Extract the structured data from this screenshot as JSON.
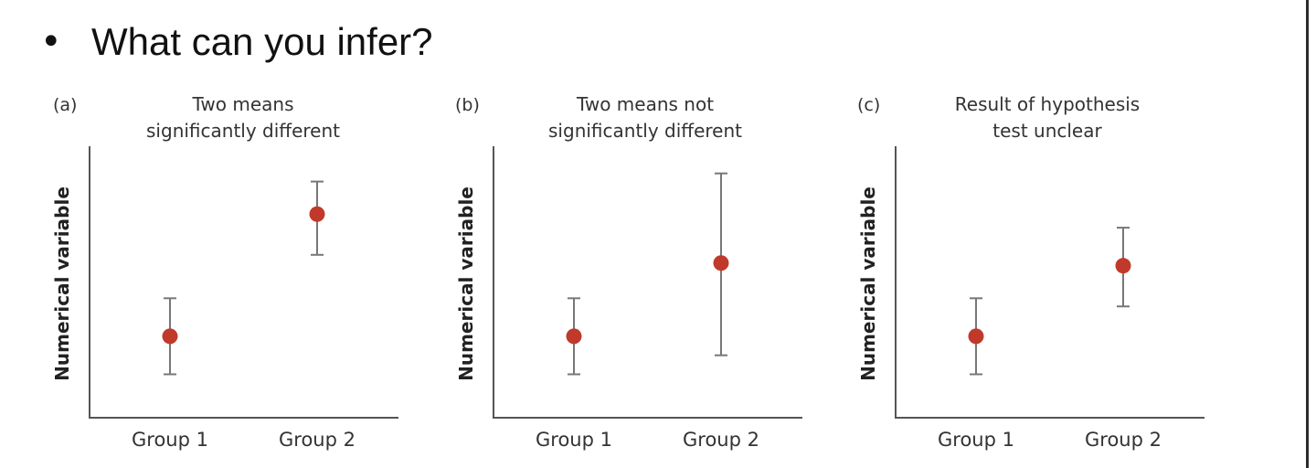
{
  "slide": {
    "bullet": "•",
    "heading": "What can you infer?"
  },
  "colors": {
    "point": "#c0392b",
    "error_bar": "#777777",
    "axis": "#555555"
  },
  "chart_data": [
    {
      "type": "scatter",
      "panel": "(a)",
      "title": [
        "Two means",
        "significantly different"
      ],
      "ylabel": "Numerical variable",
      "categories": [
        "Group 1",
        "Group 2"
      ],
      "series": [
        {
          "values": [
            3.0,
            7.5
          ],
          "lower": [
            1.6,
            6.0
          ],
          "upper": [
            4.4,
            8.7
          ]
        }
      ],
      "ylim": [
        0,
        10
      ],
      "y_ticks_shown": false,
      "grid": false
    },
    {
      "type": "scatter",
      "panel": "(b)",
      "title": [
        "Two means not",
        "significantly different"
      ],
      "ylabel": "Numerical variable",
      "categories": [
        "Group 1",
        "Group 2"
      ],
      "series": [
        {
          "values": [
            3.0,
            5.7
          ],
          "lower": [
            1.6,
            2.3
          ],
          "upper": [
            4.4,
            9.0
          ]
        }
      ],
      "ylim": [
        0,
        10
      ],
      "y_ticks_shown": false,
      "grid": false
    },
    {
      "type": "scatter",
      "panel": "(c)",
      "title": [
        "Result of hypothesis",
        "test unclear"
      ],
      "ylabel": "Numerical variable",
      "categories": [
        "Group 1",
        "Group 2"
      ],
      "series": [
        {
          "values": [
            3.0,
            5.6
          ],
          "lower": [
            1.6,
            4.1
          ],
          "upper": [
            4.4,
            7.0
          ]
        }
      ],
      "ylim": [
        0,
        10
      ],
      "y_ticks_shown": false,
      "grid": false
    }
  ]
}
